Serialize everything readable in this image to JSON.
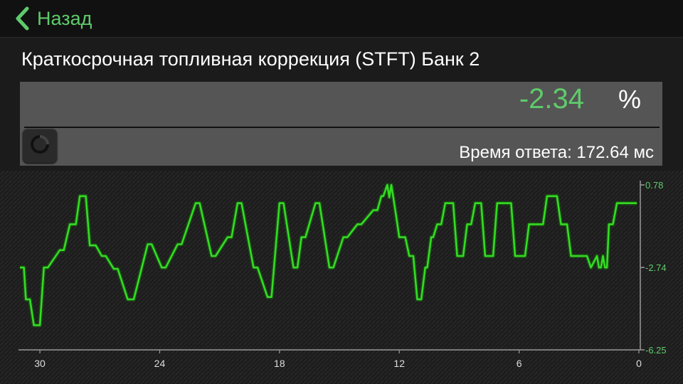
{
  "nav": {
    "back_label": "Назад",
    "back_icon": "chevron-left-icon"
  },
  "param": {
    "title": "Краткосрочная топливная коррекция (STFT) Банк 2",
    "value": "-2.34",
    "unit": "%",
    "response_time": "Время ответа: 172.64 мс"
  },
  "colors": {
    "accent": "#5ecb6b",
    "line": "#33dd22",
    "background": "#1b1b1b",
    "panel": "#555555"
  },
  "chart_data": {
    "type": "line",
    "title": "",
    "xlabel": "",
    "ylabel": "",
    "x_reversed": true,
    "xlim": [
      31,
      0
    ],
    "ylim": [
      -6.25,
      0.78
    ],
    "x_ticks": [
      "30",
      "24",
      "18",
      "12",
      "6",
      "0"
    ],
    "y_ticks": [
      "0.78",
      "-2.74",
      "-6.25"
    ],
    "y_axis_side": "right",
    "grid": false,
    "series": [
      {
        "name": "",
        "x": [
          31.0,
          30.8,
          30.7,
          30.5,
          30.3,
          30.0,
          29.8,
          29.6,
          29.0,
          28.8,
          28.5,
          28.2,
          28.0,
          27.7,
          27.5,
          27.2,
          26.9,
          26.7,
          26.3,
          26.1,
          25.6,
          25.3,
          24.6,
          24.4,
          23.9,
          23.7,
          23.1,
          22.9,
          22.2,
          22.0,
          21.4,
          21.2,
          20.6,
          20.4,
          20.1,
          19.9,
          19.3,
          19.1,
          18.6,
          18.4,
          18.0,
          17.8,
          17.3,
          17.1,
          16.9,
          16.7,
          16.2,
          16.0,
          15.5,
          15.3,
          14.8,
          14.6,
          14.1,
          13.9,
          13.3,
          13.1,
          12.9,
          12.8,
          12.6,
          12.5,
          12.4,
          12.3,
          12.2,
          12.0,
          11.7,
          11.5,
          11.3,
          11.1,
          10.9,
          10.7,
          10.6,
          10.4,
          10.3,
          10.1,
          9.9,
          9.7,
          9.3,
          9.1,
          8.8,
          8.6,
          8.4,
          8.2,
          7.9,
          7.7,
          7.3,
          7.1,
          6.4,
          6.2,
          5.7,
          5.5,
          4.8,
          4.6,
          4.1,
          3.9,
          3.6,
          3.4,
          2.6,
          2.4,
          2.1,
          2.0,
          1.9,
          1.8,
          1.7,
          1.6,
          1.5,
          1.3,
          1.1,
          0.1
        ],
        "y": [
          -2.74,
          -2.74,
          -4.1,
          -4.1,
          -5.2,
          -5.2,
          -2.74,
          -2.74,
          -2.0,
          -2.0,
          -0.9,
          -0.9,
          0.3,
          0.3,
          -1.8,
          -1.8,
          -2.25,
          -2.25,
          -2.8,
          -2.8,
          -4.1,
          -4.1,
          -1.75,
          -1.75,
          -2.74,
          -2.74,
          -1.75,
          -1.75,
          0.0,
          0.0,
          -2.25,
          -2.25,
          -1.45,
          -1.45,
          0.0,
          0.0,
          -2.74,
          -2.74,
          -4.0,
          -4.0,
          0.0,
          0.0,
          -2.74,
          -2.74,
          -1.45,
          -1.45,
          0.0,
          0.0,
          -2.74,
          -2.74,
          -1.45,
          -1.45,
          -0.9,
          -0.9,
          -0.3,
          -0.3,
          0.3,
          0.3,
          0.78,
          0.25,
          0.78,
          0.25,
          -0.3,
          -1.45,
          -1.45,
          -2.25,
          -2.25,
          -4.1,
          -4.1,
          -2.74,
          -2.74,
          -1.45,
          -1.45,
          -0.9,
          -0.9,
          0.0,
          0.0,
          -2.25,
          -2.25,
          -0.9,
          -0.9,
          0.0,
          0.0,
          -2.25,
          -2.25,
          0.0,
          0.0,
          -2.25,
          -2.25,
          -0.9,
          -0.9,
          0.3,
          0.3,
          -0.9,
          -0.9,
          -2.25,
          -2.25,
          -2.74,
          -2.25,
          -2.74,
          -2.74,
          -2.25,
          -2.74,
          -2.74,
          -0.9,
          -0.9,
          0.0,
          0.0
        ]
      }
    ]
  }
}
